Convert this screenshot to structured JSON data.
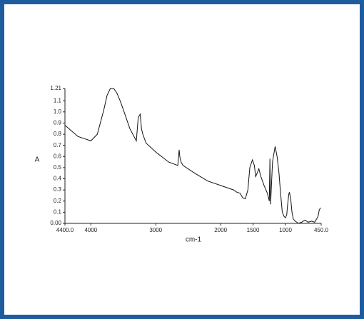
{
  "chart_data": {
    "type": "line",
    "x_label": "cm-1",
    "y_label": "A",
    "xlim": [
      4400,
      450
    ],
    "ylim": [
      0,
      1.21
    ],
    "xticks": [
      {
        "value": 4400,
        "label": "4400.0"
      },
      4000,
      3000,
      2000,
      1500,
      1000,
      {
        "value": 450,
        "label": "450.0"
      }
    ],
    "yticks": [
      {
        "value": 0,
        "label": "0.00"
      },
      0.1,
      0.2,
      0.3,
      0.4,
      0.5,
      0.6,
      0.7,
      0.8,
      0.9,
      {
        "value": 1,
        "label": "1.0"
      },
      1.1,
      1.21
    ],
    "color": "#111111",
    "x": [
      4400,
      4300,
      4200,
      4100,
      4000,
      3900,
      3800,
      3750,
      3700,
      3650,
      3600,
      3550,
      3500,
      3400,
      3300,
      3270,
      3240,
      3220,
      3200,
      3150,
      3000,
      2800,
      2660,
      2640,
      2630,
      2610,
      2580,
      2400,
      2200,
      2000,
      1850,
      1800,
      1750,
      1700,
      1660,
      1620,
      1580,
      1550,
      1510,
      1480,
      1460,
      1430,
      1410,
      1380,
      1330,
      1280,
      1250,
      1240,
      1235,
      1230,
      1200,
      1160,
      1130,
      1100,
      1080,
      1050,
      1020,
      1000,
      980,
      970,
      950,
      940,
      920,
      900,
      880,
      850,
      800,
      750,
      700,
      650,
      600,
      550,
      500,
      480,
      460
    ],
    "values": [
      0.88,
      0.83,
      0.78,
      0.76,
      0.74,
      0.8,
      1.02,
      1.15,
      1.21,
      1.21,
      1.17,
      1.1,
      1.02,
      0.85,
      0.74,
      0.95,
      0.98,
      0.85,
      0.8,
      0.72,
      0.64,
      0.55,
      0.52,
      0.66,
      0.6,
      0.55,
      0.52,
      0.45,
      0.38,
      0.34,
      0.31,
      0.3,
      0.28,
      0.27,
      0.23,
      0.22,
      0.3,
      0.5,
      0.57,
      0.52,
      0.42,
      0.46,
      0.49,
      0.42,
      0.34,
      0.27,
      0.2,
      0.58,
      0.3,
      0.17,
      0.55,
      0.69,
      0.6,
      0.45,
      0.3,
      0.1,
      0.06,
      0.05,
      0.08,
      0.15,
      0.26,
      0.28,
      0.22,
      0.1,
      0.04,
      0.02,
      0.0,
      0.01,
      0.03,
      0.01,
      0.02,
      0.01,
      0.06,
      0.12,
      0.14
    ]
  }
}
